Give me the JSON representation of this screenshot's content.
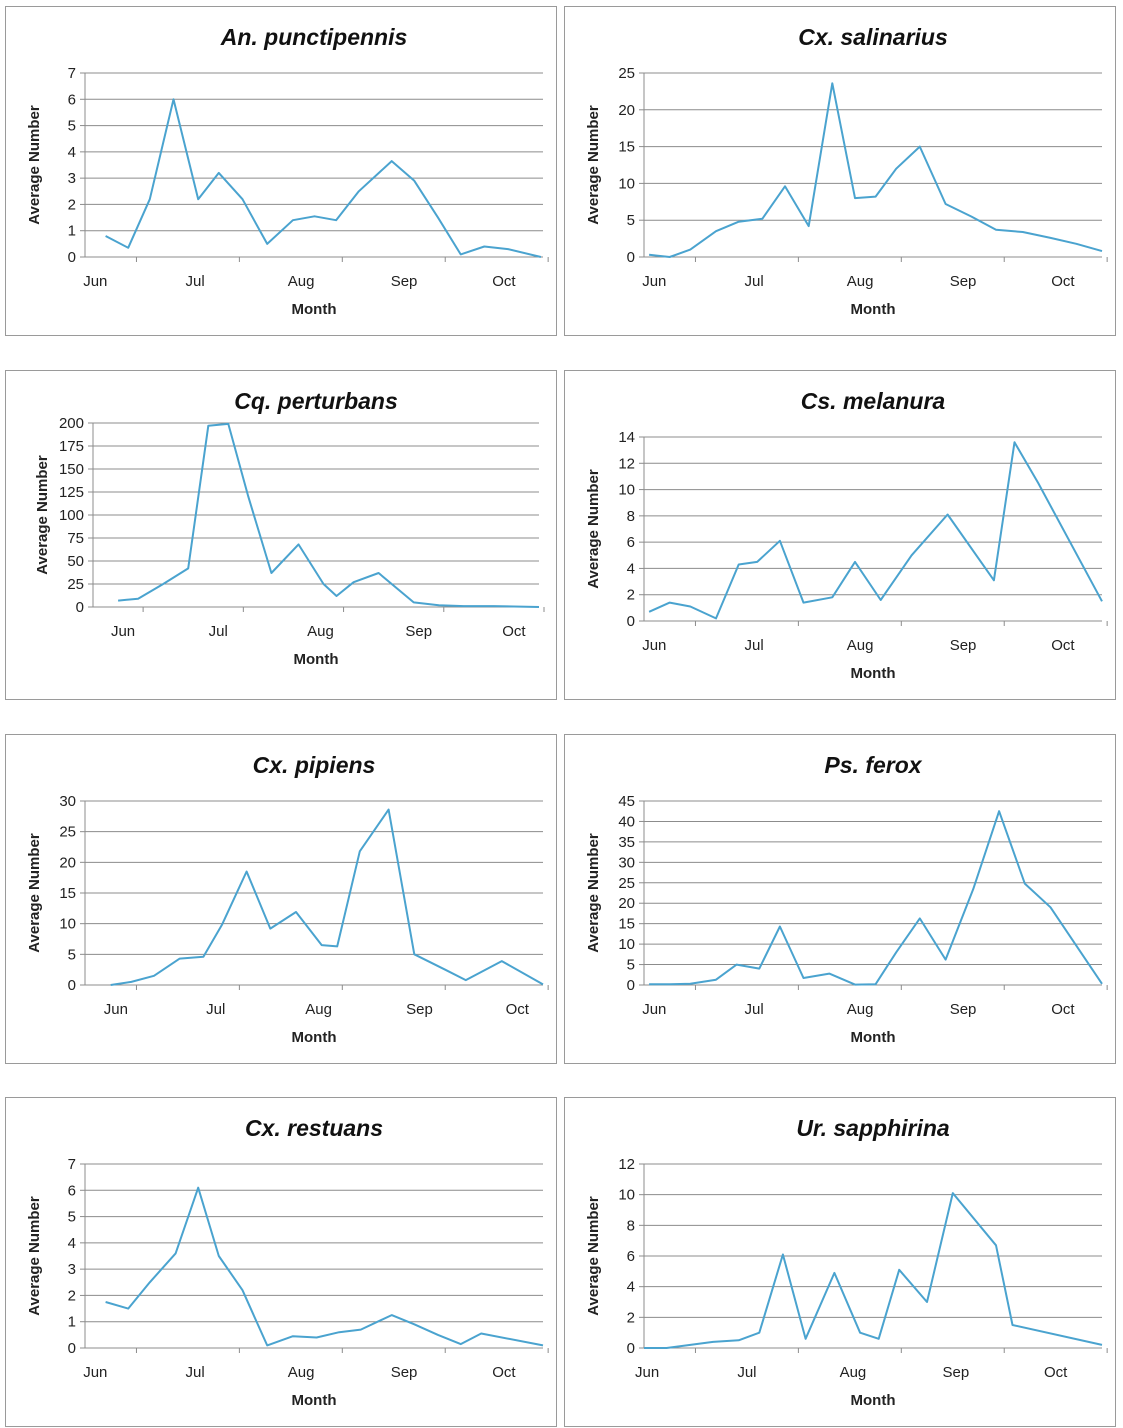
{
  "colors": {
    "line": "#4aa3cf"
  },
  "chart_data": [
    {
      "type": "line",
      "title": "An. punctipennis",
      "xlabel": "Month",
      "ylabel": "Average Number",
      "xlim": [
        0,
        4.45
      ],
      "ylim": [
        0,
        7
      ],
      "yticks": [
        0,
        1,
        2,
        3,
        4,
        5,
        6,
        7
      ],
      "xticks": [
        {
          "label": "Jun",
          "x": 0.1
        },
        {
          "label": "Jul",
          "x": 1.07
        },
        {
          "label": "Aug",
          "x": 2.1
        },
        {
          "label": "Sep",
          "x": 3.1
        },
        {
          "label": "Oct",
          "x": 4.07
        }
      ],
      "grid": true,
      "series": [
        {
          "x": [
            0.2,
            0.42,
            0.63,
            0.86,
            1.1,
            1.3,
            1.53,
            1.77,
            2.02,
            2.23,
            2.44,
            2.66,
            2.98,
            3.2,
            3.43,
            3.65,
            3.88,
            4.11,
            4.43
          ],
          "values": [
            0.8,
            0.35,
            2.2,
            6.0,
            2.2,
            3.2,
            2.2,
            0.5,
            1.4,
            1.55,
            1.4,
            2.5,
            3.65,
            2.9,
            1.5,
            0.1,
            0.4,
            0.3,
            0.0
          ]
        }
      ]
    },
    {
      "type": "line",
      "title": "Cx. salinarius",
      "xlabel": "Month",
      "ylabel": "Average Number",
      "xlim": [
        0,
        4.45
      ],
      "ylim": [
        0,
        25
      ],
      "yticks": [
        0,
        5,
        10,
        15,
        20,
        25
      ],
      "xticks": [
        {
          "label": "Jun",
          "x": 0.1
        },
        {
          "label": "Jul",
          "x": 1.07
        },
        {
          "label": "Aug",
          "x": 2.1
        },
        {
          "label": "Sep",
          "x": 3.1
        },
        {
          "label": "Oct",
          "x": 4.07
        }
      ],
      "grid": true,
      "series": [
        {
          "x": [
            0.05,
            0.25,
            0.45,
            0.7,
            0.92,
            1.15,
            1.37,
            1.6,
            1.83,
            2.05,
            2.25,
            2.45,
            2.68,
            2.93,
            3.18,
            3.42,
            3.68,
            3.95,
            4.2,
            4.45
          ],
          "values": [
            0.3,
            0.0,
            1.0,
            3.5,
            4.8,
            5.2,
            9.6,
            4.2,
            23.6,
            8.0,
            8.2,
            12.0,
            15.0,
            7.2,
            5.5,
            3.7,
            3.4,
            2.6,
            1.8,
            0.8
          ]
        }
      ]
    },
    {
      "type": "line",
      "title": "Cq. perturbans",
      "xlabel": "Month",
      "ylabel": "Average Number",
      "xlim": [
        0,
        4.45
      ],
      "ylim": [
        0,
        200
      ],
      "yticks": [
        0,
        25,
        50,
        75,
        100,
        125,
        150,
        175,
        200
      ],
      "xticks": [
        {
          "label": "Jun",
          "x": 0.3
        },
        {
          "label": "Jul",
          "x": 1.25
        },
        {
          "label": "Aug",
          "x": 2.27
        },
        {
          "label": "Sep",
          "x": 3.25
        },
        {
          "label": "Oct",
          "x": 4.2
        }
      ],
      "grid": true,
      "series": [
        {
          "x": [
            0.25,
            0.45,
            0.7,
            0.95,
            1.15,
            1.35,
            1.55,
            1.78,
            2.05,
            2.3,
            2.43,
            2.6,
            2.85,
            3.2,
            3.45,
            3.7,
            4.0,
            4.2,
            4.45
          ],
          "values": [
            7,
            9,
            25,
            42,
            197,
            199,
            120,
            37,
            68,
            25,
            12,
            27,
            37,
            5,
            2,
            1,
            1,
            0.5,
            0
          ]
        }
      ]
    },
    {
      "type": "line",
      "title": "Cs. melanura",
      "xlabel": "Month",
      "ylabel": "Average Number",
      "xlim": [
        0,
        4.45
      ],
      "ylim": [
        0,
        14
      ],
      "yticks": [
        0,
        2,
        4,
        6,
        8,
        10,
        12,
        14
      ],
      "xticks": [
        {
          "label": "Jun",
          "x": 0.1
        },
        {
          "label": "Jul",
          "x": 1.07
        },
        {
          "label": "Aug",
          "x": 2.1
        },
        {
          "label": "Sep",
          "x": 3.1
        },
        {
          "label": "Oct",
          "x": 4.07
        }
      ],
      "grid": true,
      "series": [
        {
          "x": [
            0.05,
            0.25,
            0.45,
            0.7,
            0.92,
            1.1,
            1.32,
            1.55,
            1.83,
            2.05,
            2.3,
            2.6,
            2.95,
            3.4,
            3.6,
            3.83,
            4.45
          ],
          "values": [
            0.7,
            1.4,
            1.1,
            0.2,
            4.3,
            4.5,
            6.1,
            1.4,
            1.8,
            4.5,
            1.6,
            5.0,
            8.1,
            3.1,
            13.6,
            10.5,
            1.5
          ]
        }
      ]
    },
    {
      "type": "line",
      "title": "Cx. pipiens",
      "xlabel": "Month",
      "ylabel": "Average Number",
      "xlim": [
        0,
        4.45
      ],
      "ylim": [
        0,
        30
      ],
      "yticks": [
        0,
        5,
        10,
        15,
        20,
        25,
        30
      ],
      "xticks": [
        {
          "label": "Jun",
          "x": 0.3
        },
        {
          "label": "Jul",
          "x": 1.27
        },
        {
          "label": "Aug",
          "x": 2.27
        },
        {
          "label": "Sep",
          "x": 3.25
        },
        {
          "label": "Oct",
          "x": 4.2
        }
      ],
      "grid": true,
      "series": [
        {
          "x": [
            0.25,
            0.45,
            0.67,
            0.92,
            1.15,
            1.33,
            1.57,
            1.8,
            2.05,
            2.3,
            2.45,
            2.67,
            2.95,
            3.2,
            3.5,
            3.7,
            4.05,
            4.45
          ],
          "values": [
            0.0,
            0.5,
            1.5,
            4.3,
            4.6,
            9.8,
            18.5,
            9.2,
            11.9,
            6.5,
            6.3,
            21.8,
            28.6,
            5.0,
            2.5,
            0.8,
            3.9,
            0.1
          ]
        }
      ]
    },
    {
      "type": "line",
      "title": "Ps. ferox",
      "xlabel": "Month",
      "ylabel": "Average Number",
      "xlim": [
        0,
        4.45
      ],
      "ylim": [
        0,
        45
      ],
      "yticks": [
        0,
        5,
        10,
        15,
        20,
        25,
        30,
        35,
        40,
        45
      ],
      "xticks": [
        {
          "label": "Jun",
          "x": 0.1
        },
        {
          "label": "Jul",
          "x": 1.07
        },
        {
          "label": "Aug",
          "x": 2.1
        },
        {
          "label": "Sep",
          "x": 3.1
        },
        {
          "label": "Oct",
          "x": 4.07
        }
      ],
      "grid": true,
      "series": [
        {
          "x": [
            0.05,
            0.25,
            0.45,
            0.7,
            0.9,
            1.12,
            1.32,
            1.55,
            1.8,
            2.05,
            2.25,
            2.45,
            2.68,
            2.93,
            3.2,
            3.45,
            3.7,
            3.95,
            4.45
          ],
          "values": [
            0.2,
            0.2,
            0.3,
            1.3,
            5.0,
            4.0,
            14.3,
            1.7,
            2.8,
            0.1,
            0.2,
            8.0,
            16.3,
            6.2,
            23.5,
            42.5,
            24.8,
            19.0,
            0.3
          ]
        }
      ]
    },
    {
      "type": "line",
      "title": "Cx. restuans",
      "xlabel": "Month",
      "ylabel": "Average Number",
      "xlim": [
        0,
        4.45
      ],
      "ylim": [
        0,
        7
      ],
      "yticks": [
        0,
        1,
        2,
        3,
        4,
        5,
        6,
        7
      ],
      "xticks": [
        {
          "label": "Jun",
          "x": 0.1
        },
        {
          "label": "Jul",
          "x": 1.07
        },
        {
          "label": "Aug",
          "x": 2.1
        },
        {
          "label": "Sep",
          "x": 3.1
        },
        {
          "label": "Oct",
          "x": 4.07
        }
      ],
      "grid": true,
      "series": [
        {
          "x": [
            0.2,
            0.42,
            0.63,
            0.88,
            1.1,
            1.3,
            1.53,
            1.77,
            2.02,
            2.25,
            2.47,
            2.68,
            2.98,
            3.2,
            3.43,
            3.65,
            3.85,
            4.45
          ],
          "values": [
            1.75,
            1.5,
            2.5,
            3.6,
            6.1,
            3.5,
            2.2,
            0.1,
            0.45,
            0.4,
            0.6,
            0.7,
            1.25,
            0.9,
            0.5,
            0.15,
            0.55,
            0.1
          ]
        }
      ]
    },
    {
      "type": "line",
      "title": "Ur. sapphirina",
      "xlabel": "Month",
      "ylabel": "Average Number",
      "xlim": [
        0,
        4.45
      ],
      "ylim": [
        0,
        12
      ],
      "yticks": [
        0,
        2,
        4,
        6,
        8,
        10,
        12
      ],
      "xticks": [
        {
          "label": "Jun",
          "x": 0.03
        },
        {
          "label": "Jul",
          "x": 1.0
        },
        {
          "label": "Aug",
          "x": 2.03
        },
        {
          "label": "Sep",
          "x": 3.03
        },
        {
          "label": "Oct",
          "x": 4.0
        }
      ],
      "grid": true,
      "series": [
        {
          "x": [
            0.0,
            0.22,
            0.45,
            0.67,
            0.92,
            1.12,
            1.35,
            1.57,
            1.85,
            2.1,
            2.28,
            2.48,
            2.75,
            3.0,
            3.42,
            3.58,
            4.45
          ],
          "values": [
            0.0,
            0.0,
            0.2,
            0.4,
            0.5,
            1.0,
            6.1,
            0.6,
            4.9,
            1.0,
            0.6,
            5.1,
            3.0,
            10.1,
            6.7,
            1.5,
            0.2
          ]
        }
      ]
    }
  ]
}
